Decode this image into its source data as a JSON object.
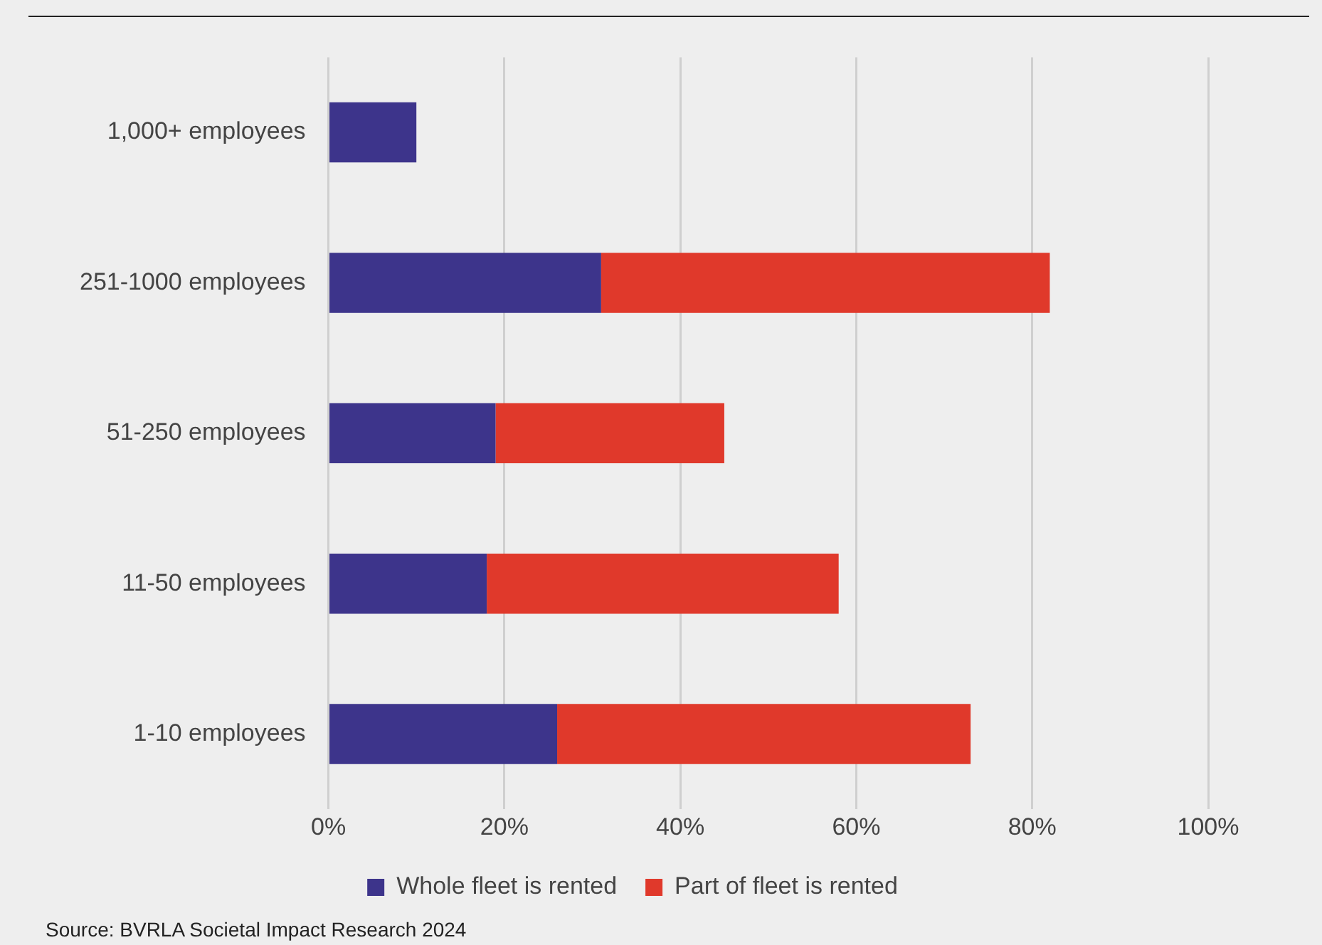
{
  "chart_data": {
    "type": "bar",
    "orientation": "horizontal",
    "stacked": true,
    "categories": [
      "1,000+ employees",
      "251-1000 employees",
      "51-250 employees",
      "11-50 employees",
      "1-10 employees"
    ],
    "series": [
      {
        "name": "Whole fleet is rented",
        "color": "#3d348b",
        "values": [
          10,
          31,
          19,
          18,
          26
        ]
      },
      {
        "name": "Part of fleet is rented",
        "color": "#e0392b",
        "values": [
          null,
          51,
          26,
          40,
          47
        ]
      }
    ],
    "xlim": [
      0,
      100
    ],
    "xticks": [
      {
        "value": 0,
        "label": "0%"
      },
      {
        "value": 20,
        "label": "20%"
      },
      {
        "value": 40,
        "label": "40%"
      },
      {
        "value": 60,
        "label": "60%"
      },
      {
        "value": 80,
        "label": "80%"
      },
      {
        "value": 100,
        "label": "100%"
      }
    ],
    "grid": "x",
    "legend": "bottom",
    "annotations": [
      "Source: BVRLA Societal Impact Research 2024"
    ]
  }
}
